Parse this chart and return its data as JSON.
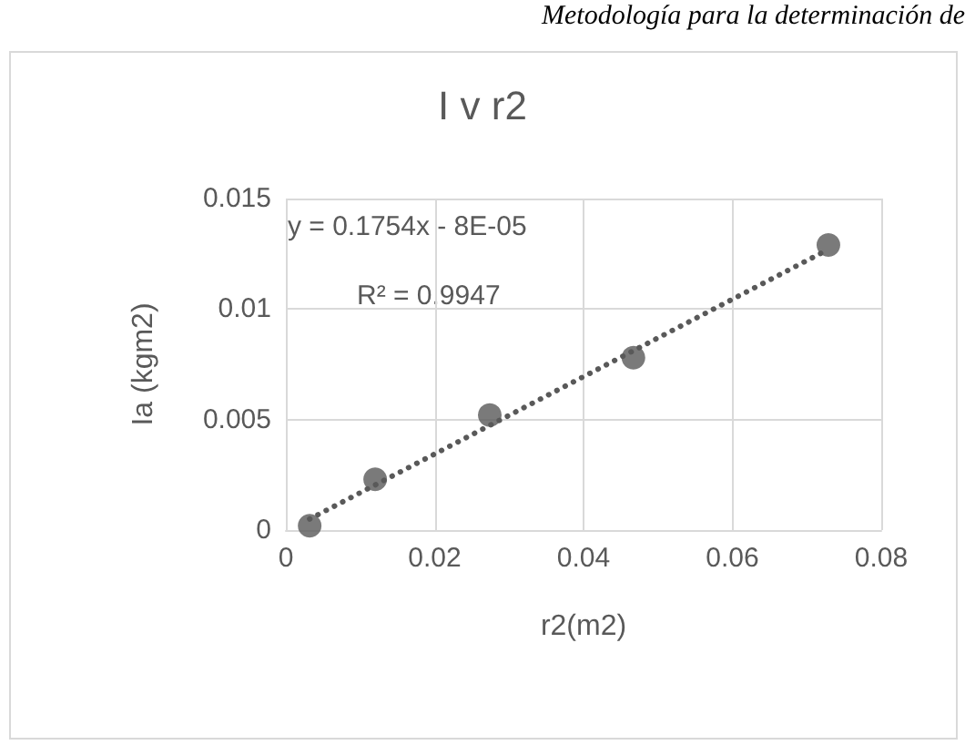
{
  "chart_data": {
    "type": "scatter",
    "title": "I v r2",
    "xlabel": "r2(m2)",
    "ylabel": "Ia (kgm2)",
    "annotations": [
      "Metodología para la determinación de",
      "y = 0.1754x - 8E-05",
      "R² = 0.9947"
    ],
    "series": [
      {
        "type": "scatter",
        "color": "#595959",
        "marker": "circle",
        "x": [
          0.0032,
          0.012,
          0.0274,
          0.0467,
          0.0729
        ],
        "values": [
          0.0002,
          0.0023,
          0.0052,
          0.0078,
          0.0129
        ]
      },
      {
        "type": "line",
        "color": "#595959",
        "marker": "none",
        "line_style": "dotted",
        "x": [
          0.0032,
          0.0729
        ],
        "values": [
          0.0005,
          0.0127
        ]
      }
    ],
    "xlim": [
      0,
      0.08
    ],
    "xticks": [
      0,
      0.02,
      0.04,
      0.06,
      0.08
    ],
    "ylim": [
      0,
      0.015
    ],
    "yticks": [
      0,
      0.005,
      0.01,
      0.015
    ],
    "grid": true
  }
}
